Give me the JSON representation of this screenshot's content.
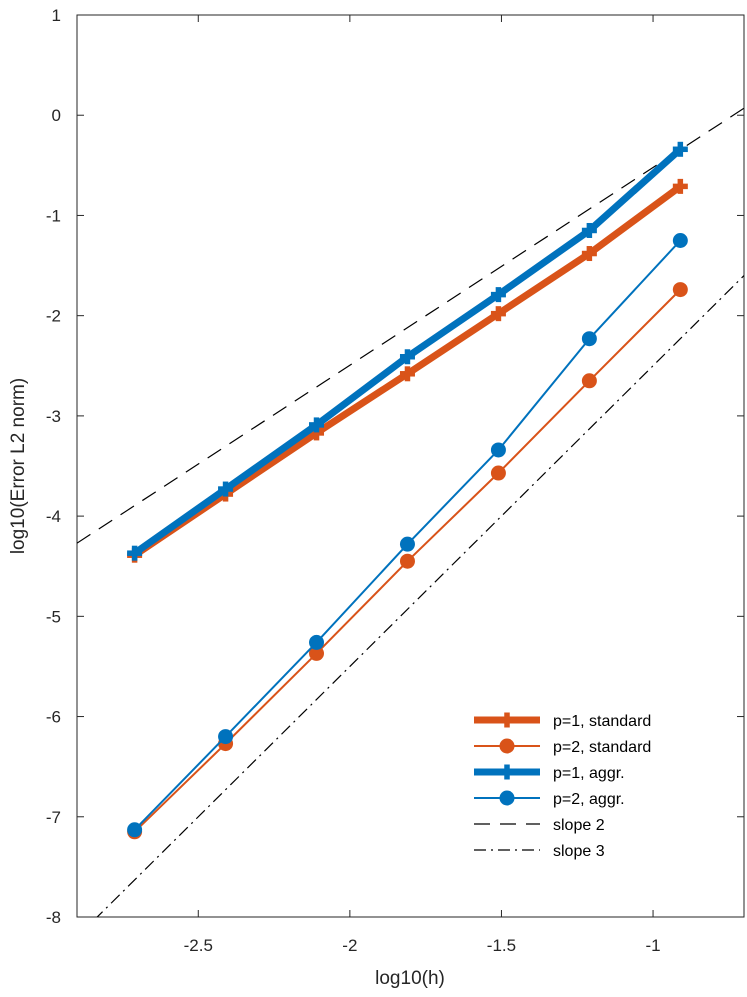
{
  "chart_data": {
    "type": "line",
    "xlabel": "log10(h)",
    "ylabel": "log10(Error L2 norm)",
    "xlim": [
      -2.9,
      -0.7
    ],
    "ylim": [
      -8,
      1
    ],
    "xticks": [
      -2.5,
      -2,
      -1.5,
      -1
    ],
    "xtick_labels": [
      "-2.5",
      "-2",
      "-1.5",
      "-1"
    ],
    "yticks": [
      1,
      0,
      -1,
      -2,
      -3,
      -4,
      -5,
      -6,
      -7,
      -8
    ],
    "ytick_labels": [
      "1",
      "0",
      "-1",
      "-2",
      "-3",
      "-4",
      "-5",
      "-6",
      "-7",
      "-8"
    ],
    "legend_position": "bottom-right",
    "x": [
      -2.71,
      -2.41,
      -2.11,
      -1.81,
      -1.51,
      -1.21,
      -0.91
    ],
    "series": [
      {
        "name": "p=1, standard",
        "color": "#D95319",
        "marker": "plus",
        "weight": "thick",
        "values": [
          -4.39,
          -3.78,
          -3.17,
          -2.58,
          -1.98,
          -1.38,
          -0.71
        ]
      },
      {
        "name": "p=2, standard",
        "color": "#D95319",
        "marker": "circle",
        "weight": "thin",
        "values": [
          -7.15,
          -6.27,
          -5.37,
          -4.45,
          -3.57,
          -2.65,
          -1.74
        ]
      },
      {
        "name": "p=1, aggr.",
        "color": "#0072BD",
        "marker": "plus",
        "weight": "thick",
        "values": [
          -4.37,
          -3.73,
          -3.09,
          -2.41,
          -1.79,
          -1.15,
          -0.34
        ]
      },
      {
        "name": "p=2, aggr.",
        "color": "#0072BD",
        "marker": "circle",
        "weight": "thin",
        "values": [
          -7.13,
          -6.2,
          -5.26,
          -4.28,
          -3.34,
          -2.23,
          -1.25
        ]
      }
    ],
    "reference_lines": [
      {
        "name": "slope 2",
        "style": "dashed",
        "color": "#000000",
        "x": [
          -2.9,
          -0.7
        ],
        "y": [
          -4.27,
          0.07
        ]
      },
      {
        "name": "slope 3",
        "style": "dashdot",
        "color": "#000000",
        "x": [
          -2.9,
          -0.7
        ],
        "y": [
          -8.2,
          -1.6
        ]
      }
    ]
  }
}
